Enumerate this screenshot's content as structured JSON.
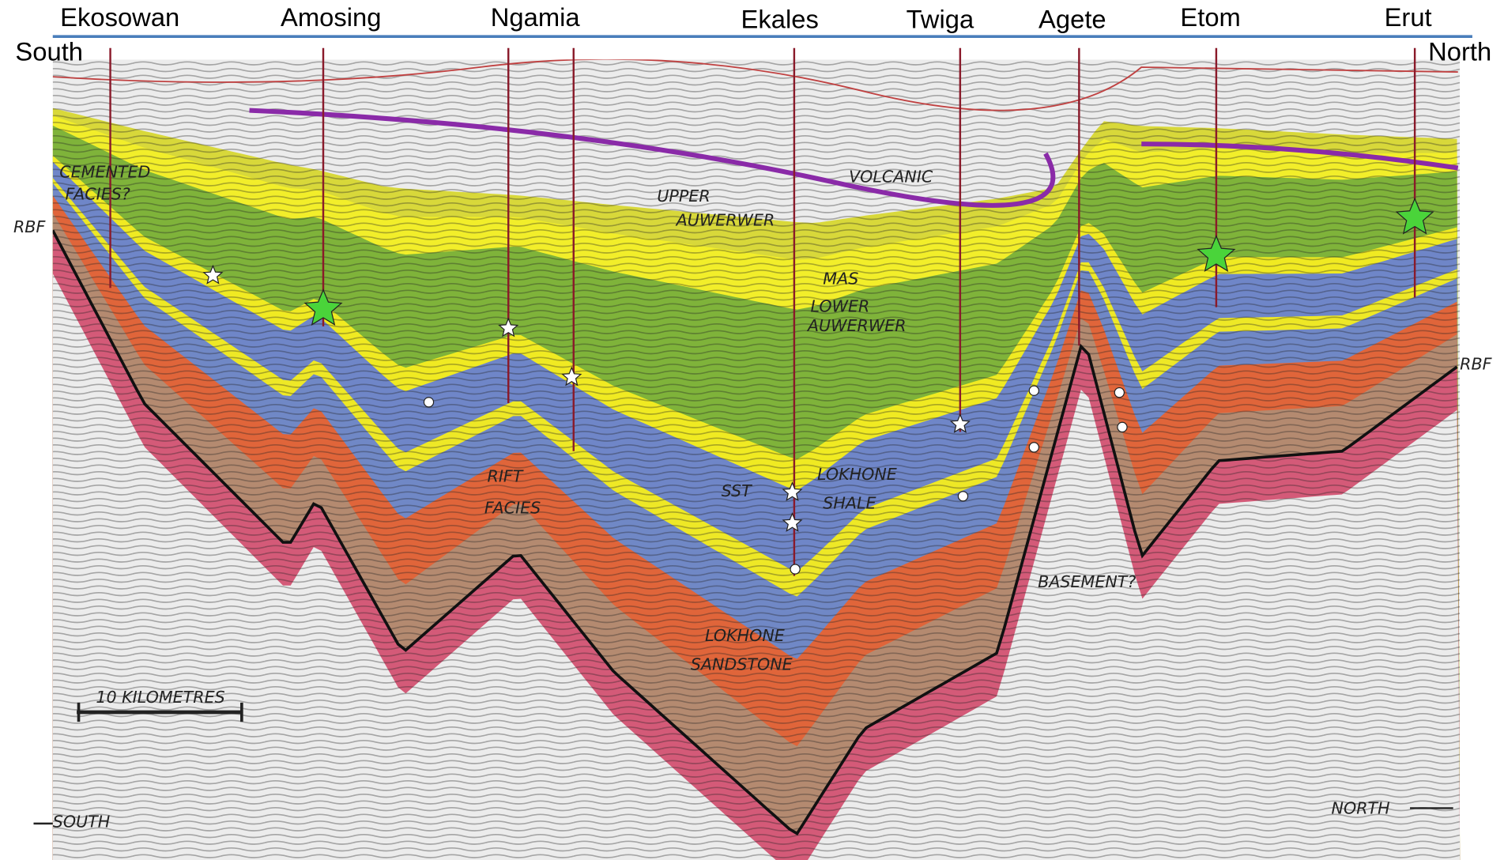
{
  "header": {
    "wells": [
      "Ekosowan",
      "Amosing",
      "Ngamia",
      "Ekales",
      "Twiga",
      "Agete",
      "Etom",
      "Erut"
    ],
    "south": "South",
    "north": "North"
  },
  "annotations": [
    "RBF",
    "CEMENTED",
    "FACIES?",
    "UPPER",
    "AUWERWER",
    "VOLCANIC",
    "MAS",
    "LOWER",
    "AUWERWER",
    "RIFT",
    "FACIES",
    "SST",
    "LOKHONE",
    "SHALE",
    "LOKHONE",
    "SANDSTONE",
    "BASEMENT?",
    "RBF",
    "10 KILOMETRES",
    "SOUTH",
    "NORTH"
  ]
}
